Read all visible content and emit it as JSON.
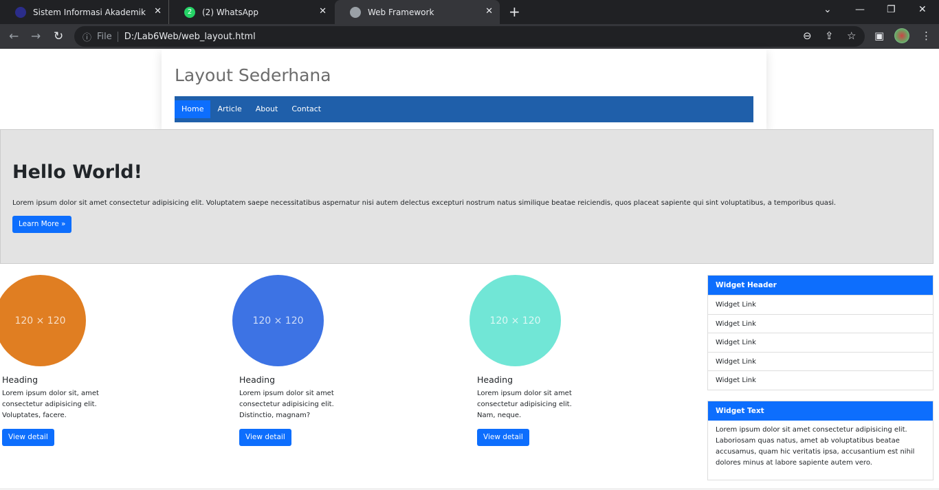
{
  "browser": {
    "tabs": [
      {
        "title": "Sistem Informasi Akademik",
        "active": false
      },
      {
        "title": "(2) WhatsApp",
        "badge": "2",
        "active": false
      },
      {
        "title": "Web Framework",
        "active": true
      }
    ],
    "address": {
      "scheme_label": "File",
      "url": "D:/Lab6Web/web_layout.html"
    }
  },
  "header": {
    "title": "Layout Sederhana",
    "nav": [
      "Home",
      "Article",
      "About",
      "Contact"
    ],
    "active_nav": "Home"
  },
  "hero": {
    "title": "Hello World!",
    "text": "Lorem ipsum dolor sit amet consectetur adipisicing elit. Voluptatem saepe necessitatibus aspernatur nisi autem delectus excepturi nostrum natus similique beatae reiciendis, quos placeat sapiente qui sint voluptatibus, a temporibus quasi.",
    "button": "Learn More »"
  },
  "cards": [
    {
      "image_label": "120 × 120",
      "color": "#e07e22",
      "heading": "Heading",
      "text": "Lorem ipsum dolor sit, amet consectetur adipisicing elit. Voluptates, facere.",
      "button": "View detail"
    },
    {
      "image_label": "120 × 120",
      "color": "#3d73e4",
      "heading": "Heading",
      "text": "Lorem ipsum dolor sit amet consectetur adipisicing elit. Distinctio, magnam?",
      "button": "View detail"
    },
    {
      "image_label": "120 × 120",
      "color": "#71e6d6",
      "heading": "Heading",
      "text": "Lorem ipsum dolor sit amet consectetur adipisicing elit. Nam, neque.",
      "button": "View detail"
    }
  ],
  "sidebar": {
    "links_widget": {
      "header": "Widget Header",
      "links": [
        "Widget Link",
        "Widget Link",
        "Widget Link",
        "Widget Link",
        "Widget Link"
      ]
    },
    "text_widget": {
      "header": "Widget Text",
      "text": "Lorem ipsum dolor sit amet consectetur adipisicing elit. Laboriosam quas natus, amet ab voluptatibus beatae accusamus, quam hic veritatis ipsa, accusantium est nihil dolores minus at labore sapiente autem vero."
    }
  },
  "colors": {
    "primary": "#0d6efd",
    "navbar": "#1f5faa",
    "hero_bg": "#e3e3e3"
  }
}
